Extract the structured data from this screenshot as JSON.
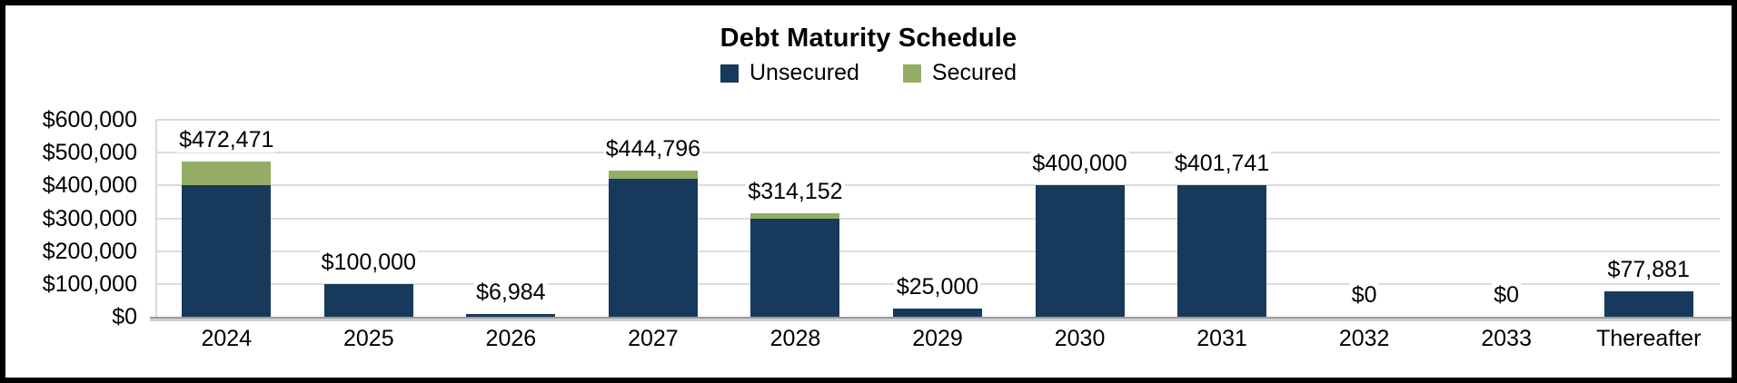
{
  "chart": {
    "title": "Debt Maturity Schedule"
  },
  "chart_data": {
    "type": "bar",
    "stacked": true,
    "title": "Debt Maturity Schedule",
    "categories": [
      "2024",
      "2025",
      "2026",
      "2027",
      "2028",
      "2029",
      "2030",
      "2031",
      "2032",
      "2033",
      "Thereafter"
    ],
    "series": [
      {
        "name": "Unsecured",
        "color": "#17395c",
        "values": [
          400000,
          100000,
          6984,
          420000,
          300000,
          25000,
          400000,
          401741,
          0,
          0,
          77881
        ]
      },
      {
        "name": "Secured",
        "color": "#93ad64",
        "values": [
          72471,
          0,
          0,
          24796,
          14152,
          0,
          0,
          0,
          0,
          0,
          0
        ]
      }
    ],
    "totals": [
      472471,
      100000,
      6984,
      444796,
      314152,
      25000,
      400000,
      401741,
      0,
      0,
      77881
    ],
    "total_labels": [
      "$472,471",
      "$100,000",
      "$6,984",
      "$444,796",
      "$314,152",
      "$25,000",
      "$400,000",
      "$401,741",
      "$0",
      "$0",
      "$77,881"
    ],
    "xlabel": "",
    "ylabel": "",
    "ylim": [
      0,
      600000
    ],
    "y_axis": {
      "min": 0,
      "max": 600000,
      "tick_interval": 100000,
      "tick_labels": [
        "$600,000",
        "$500,000",
        "$400,000",
        "$300,000",
        "$200,000",
        "$100,000",
        "$0"
      ]
    },
    "grid": true,
    "legend_position": "top-center"
  }
}
